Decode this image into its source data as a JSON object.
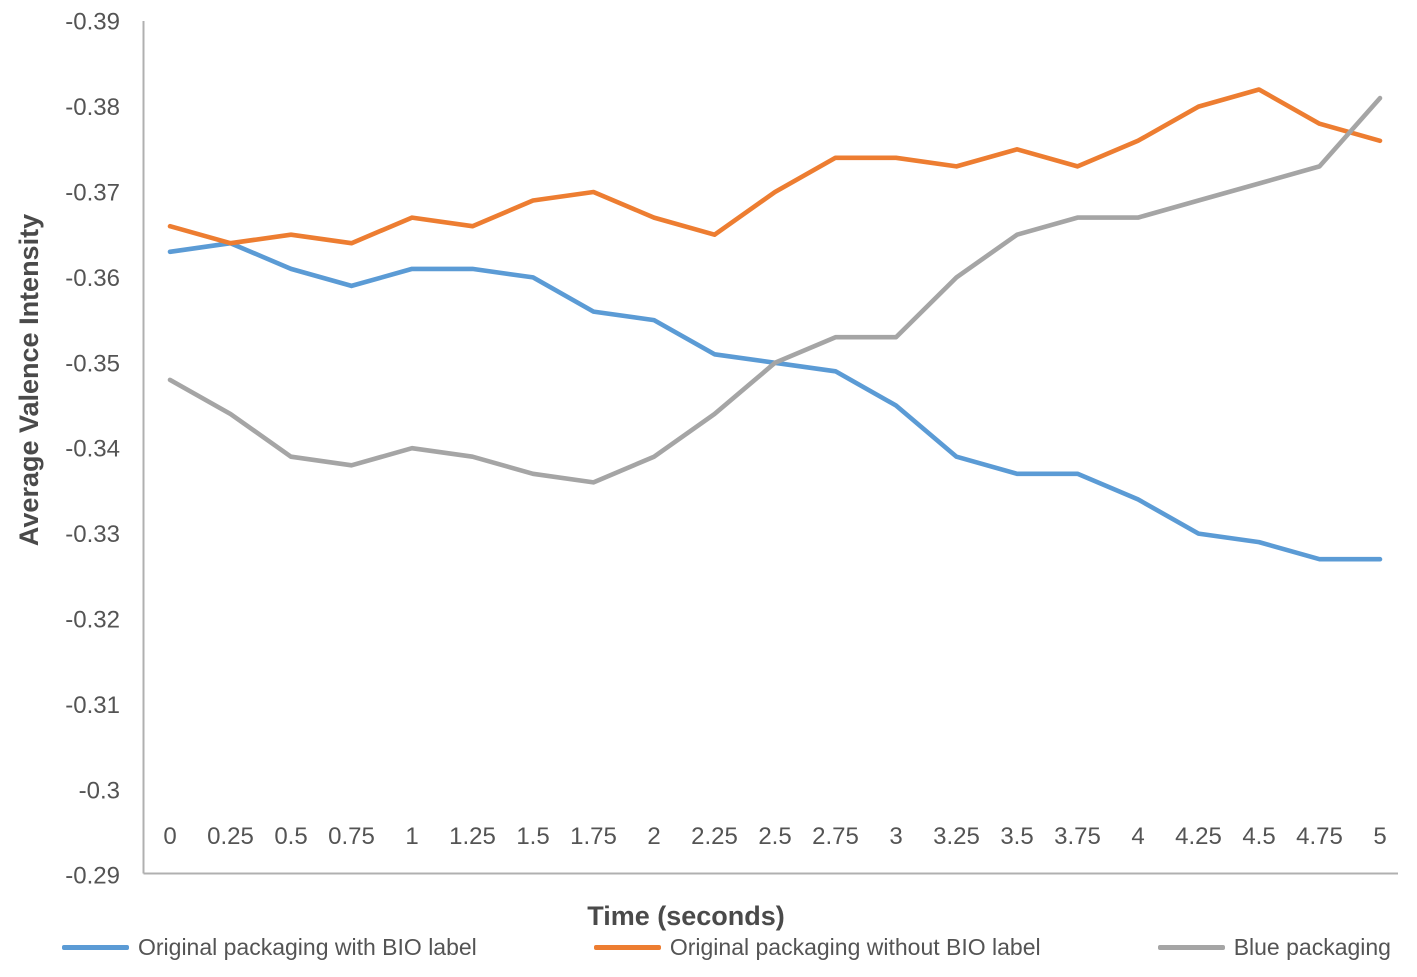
{
  "chart_data": {
    "type": "line",
    "title": "",
    "xlabel": "Time (seconds)",
    "ylabel": "Average Valence Intensity",
    "x": [
      0,
      0.25,
      0.5,
      0.75,
      1,
      1.25,
      1.5,
      1.75,
      2,
      2.25,
      2.5,
      2.75,
      3,
      3.25,
      3.5,
      3.75,
      4,
      4.25,
      4.5,
      4.75,
      5
    ],
    "x_tick_labels": [
      "0",
      "0.25",
      "0.5",
      "0.75",
      "1",
      "1.25",
      "1.5",
      "1.75",
      "2",
      "2.25",
      "2.5",
      "2.75",
      "3",
      "3.25",
      "3.5",
      "3.75",
      "4",
      "4.25",
      "4.5",
      "4.75",
      "5"
    ],
    "y_tick_values": [
      -0.39,
      -0.38,
      -0.37,
      -0.36,
      -0.35,
      -0.34,
      -0.33,
      -0.32,
      -0.31,
      -0.3,
      -0.29
    ],
    "y_tick_labels": [
      "-0.39",
      "-0.38",
      "-0.37",
      "-0.36",
      "-0.35",
      "-0.34",
      "-0.33",
      "-0.32",
      "-0.31",
      "-0.3",
      "-0.29"
    ],
    "ylim": [
      -0.39,
      -0.29
    ],
    "y_axis_inverted": true,
    "grid": false,
    "legend_position": "bottom",
    "axis_color": "#b0b0b0",
    "text_color": "#545454",
    "series": [
      {
        "name": "Original packaging with BIO label",
        "color": "#5B9BD5",
        "values": [
          -0.363,
          -0.364,
          -0.361,
          -0.359,
          -0.361,
          -0.361,
          -0.36,
          -0.356,
          -0.355,
          -0.351,
          -0.35,
          -0.349,
          -0.345,
          -0.339,
          -0.337,
          -0.337,
          -0.334,
          -0.33,
          -0.329,
          -0.327,
          -0.327
        ]
      },
      {
        "name": "Original packaging without BIO label",
        "color": "#ED7D31",
        "values": [
          -0.366,
          -0.364,
          -0.365,
          -0.364,
          -0.367,
          -0.366,
          -0.369,
          -0.37,
          -0.367,
          -0.365,
          -0.37,
          -0.374,
          -0.374,
          -0.373,
          -0.375,
          -0.373,
          -0.376,
          -0.38,
          -0.382,
          -0.378,
          -0.376
        ]
      },
      {
        "name": "Blue packaging",
        "color": "#A5A5A5",
        "values": [
          -0.348,
          -0.344,
          -0.339,
          -0.338,
          -0.34,
          -0.339,
          -0.337,
          -0.336,
          -0.339,
          -0.344,
          -0.35,
          -0.353,
          -0.353,
          -0.36,
          -0.365,
          -0.367,
          -0.367,
          -0.369,
          -0.371,
          -0.373,
          -0.381
        ]
      }
    ]
  }
}
